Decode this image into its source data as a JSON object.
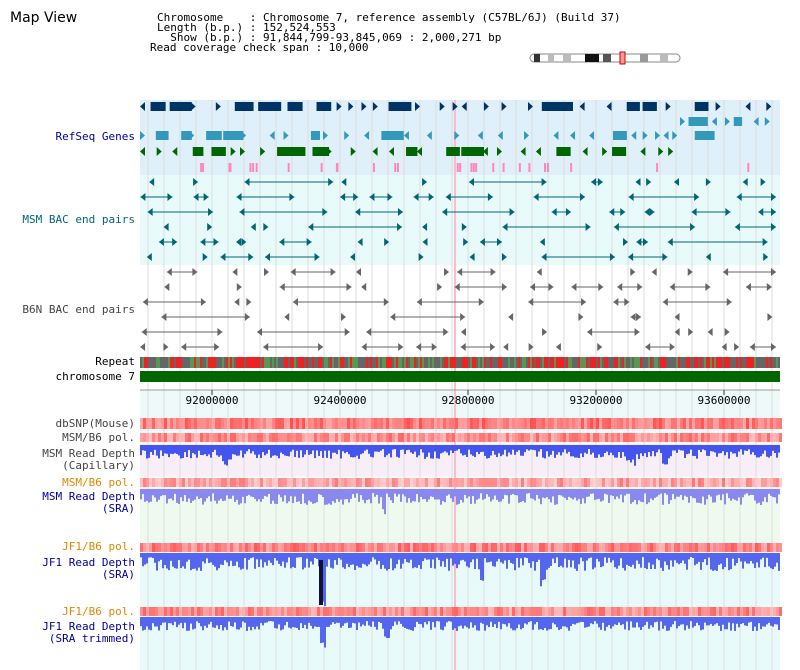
{
  "title": "Map View",
  "info": {
    "chromosome": "Chromosome    : Chromosome 7, reference assembly (C57BL/6J) (Build 37)",
    "length": "Length (b.p.) : 152,524,553",
    "show": "  Show (b.p.) : 91,844,799-93,845,069 : 2,000,271 bp",
    "read_span": "Read coverage check span : 10,000"
  },
  "tracks": {
    "refseq": "RefSeq Genes",
    "msm_bac": "MSM BAC end pairs",
    "b6n_bac": "B6N BAC end pairs",
    "repeat": "Repeat",
    "chromosome": "chromosome 7",
    "dbsnp": "dbSNP(Mouse)",
    "msm_pol": "MSM/B6 pol.",
    "msm_depth_cap_1": "MSM Read Depth",
    "msm_depth_cap_2": "(Capillary)",
    "msm_pol2": "MSM/B6 pol.",
    "msm_depth_sra_1": "MSM Read Depth",
    "msm_depth_sra_2": "(SRA)",
    "jf1_pol": "JF1/B6 pol.",
    "jf1_depth_sra_1": "JF1 Read Depth",
    "jf1_depth_sra_2": "(SRA)",
    "jf1_pol2": "JF1/B6 pol.",
    "jf1_depth_trim_1": "JF1 Read Depth",
    "jf1_depth_trim_2": "(SRA trimmed)"
  },
  "axis": {
    "ticks": [
      "92000000",
      "92400000",
      "92800000",
      "93200000",
      "93600000"
    ]
  },
  "colors": {
    "refseq_bg": "#dff0fa",
    "bac_bg": "#e8fafa",
    "gene_dark": "#003366",
    "gene_mid": "#3399bb",
    "gene_green": "#006600",
    "msm_bac": "#006677",
    "b6n_bac": "#666666",
    "depth": "#3344ee",
    "depth_light": "#7777ee",
    "chrom": "#006600",
    "label_blue": "#000099",
    "label_teal": "#006677",
    "label_gray": "#444444",
    "label_orange": "#dd8800"
  }
}
